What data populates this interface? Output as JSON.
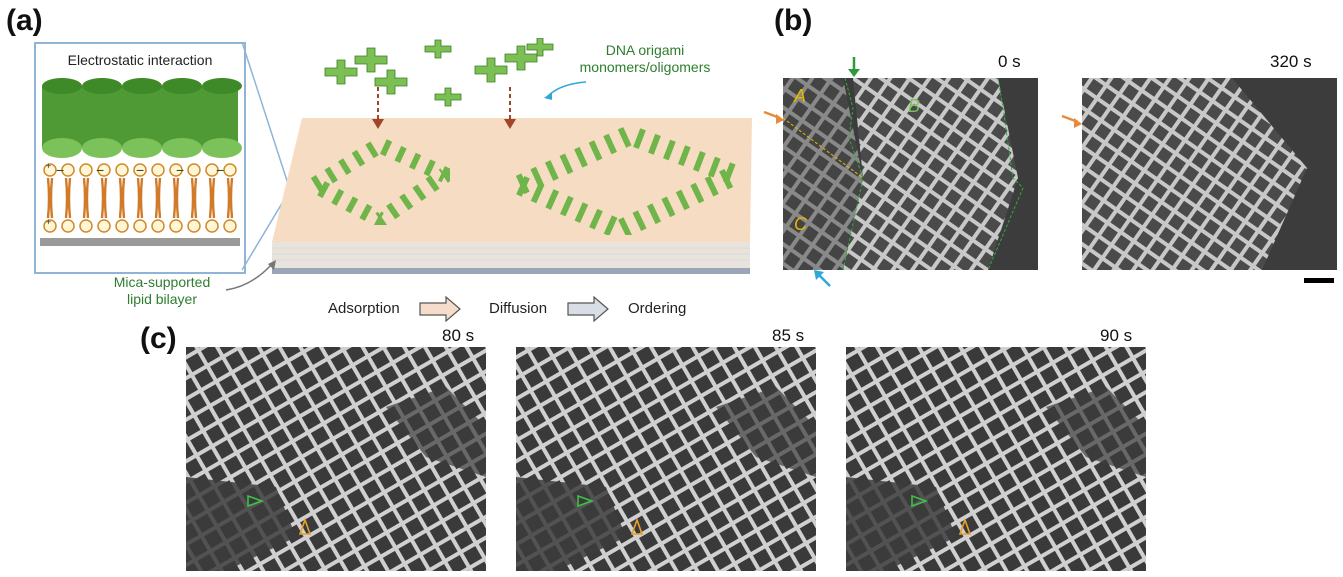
{
  "panels": {
    "a": {
      "label": "(a)",
      "inset_title": "Electrostatic interaction",
      "monomer_label_line1": "DNA origami",
      "monomer_label_line2": "monomers/oligomers",
      "bilayer_label_line1": "Mica-supported",
      "bilayer_label_line2": "lipid bilayer",
      "steps": [
        "Adsorption",
        "Diffusion",
        "Ordering"
      ],
      "charge_minus": "−",
      "charge_plus": "+"
    },
    "b": {
      "label": "(b)",
      "time_left": "0 s",
      "time_right": "320 s",
      "domain_labels": [
        "A",
        "B",
        "C"
      ]
    },
    "c": {
      "label": "(c)",
      "times": [
        "80 s",
        "85 s",
        "90 s"
      ]
    }
  },
  "colors": {
    "green": "#5aa23c",
    "green_dark": "#2f7d2f",
    "orange": "#e8893c",
    "cyan": "#2ea8d8",
    "yellow_label": "#e6b800",
    "brown_arrow": "#a0442a",
    "surface": "#f7dcc4",
    "inset_border": "#8fb4d8"
  }
}
